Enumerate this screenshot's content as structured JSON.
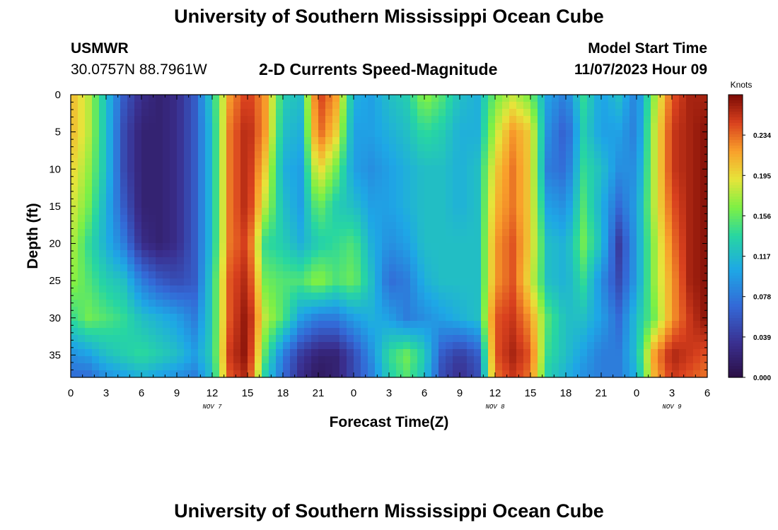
{
  "header": {
    "title": "University of Southern Mississippi Ocean Cube",
    "station": "USMWR",
    "coords": "30.0757N  88.7961W",
    "subtitle": "2-D Currents Speed-Magnitude",
    "model_label": "Model Start Time",
    "model_time": "11/07/2023 Hour 09"
  },
  "footer": {
    "title": "University of Southern Mississippi Ocean Cube"
  },
  "chart_data": {
    "type": "heatmap",
    "title": "2-D Currents Speed-Magnitude",
    "xlabel": "Forecast Time(Z)",
    "ylabel": "Depth (ft)",
    "x_tick_labels": [
      "0",
      "3",
      "6",
      "9",
      "12",
      "15",
      "18",
      "21",
      "0",
      "3",
      "6",
      "9",
      "12",
      "15",
      "18",
      "21",
      "0",
      "3",
      "6"
    ],
    "day_labels": [
      {
        "label": "NOV 7",
        "hour": 12
      },
      {
        "label": "NOV 8",
        "hour": 36
      },
      {
        "label": "NOV 9",
        "hour": 51
      }
    ],
    "xlim_hours": [
      0,
      54
    ],
    "ylim_depth_ft": [
      0,
      38
    ],
    "y_ticks": [
      0,
      5,
      10,
      15,
      20,
      25,
      30,
      35
    ],
    "y_tick_labels": [
      "0",
      "5",
      "10",
      "15",
      "20",
      "25",
      "30",
      "35"
    ],
    "colorbar": {
      "unit": "Knots",
      "range": [
        0,
        0.273
      ],
      "ticks": [
        "0.000",
        "0.039",
        "0.078",
        "0.117",
        "0.156",
        "0.195",
        "0.234"
      ],
      "tick_values": [
        0.0,
        0.039,
        0.078,
        0.117,
        0.156,
        0.195,
        0.234
      ]
    },
    "depths_ft": [
      0,
      5,
      10,
      15,
      20,
      25,
      30,
      35,
      38
    ],
    "hours": [
      0,
      1.5,
      3,
      4.5,
      6,
      7.5,
      9,
      10.5,
      12,
      13.5,
      15,
      16.5,
      18,
      19.5,
      21,
      22.5,
      24,
      25.5,
      27,
      28.5,
      30,
      31.5,
      33,
      34.5,
      36,
      37.5,
      39,
      40.5,
      42,
      43.5,
      45,
      46.5,
      48,
      49.5,
      51,
      52.5,
      54
    ],
    "speed_knots": [
      [
        0.21,
        0.18,
        0.12,
        0.06,
        0.03,
        0.02,
        0.03,
        0.06,
        0.13,
        0.22,
        0.25,
        0.22,
        0.13,
        0.12,
        0.25,
        0.22,
        0.11,
        0.1,
        0.12,
        0.13,
        0.17,
        0.15,
        0.12,
        0.11,
        0.16,
        0.18,
        0.16,
        0.1,
        0.08,
        0.14,
        0.1,
        0.12,
        0.08,
        0.17,
        0.24,
        0.26,
        0.26
      ],
      [
        0.21,
        0.18,
        0.12,
        0.05,
        0.02,
        0.02,
        0.03,
        0.06,
        0.12,
        0.23,
        0.26,
        0.22,
        0.12,
        0.11,
        0.24,
        0.2,
        0.1,
        0.1,
        0.11,
        0.12,
        0.14,
        0.13,
        0.11,
        0.11,
        0.18,
        0.22,
        0.2,
        0.09,
        0.06,
        0.13,
        0.1,
        0.1,
        0.08,
        0.18,
        0.25,
        0.26,
        0.27
      ],
      [
        0.2,
        0.17,
        0.12,
        0.05,
        0.02,
        0.02,
        0.03,
        0.06,
        0.12,
        0.23,
        0.26,
        0.2,
        0.11,
        0.1,
        0.2,
        0.16,
        0.1,
        0.09,
        0.1,
        0.11,
        0.12,
        0.12,
        0.11,
        0.12,
        0.2,
        0.23,
        0.2,
        0.08,
        0.07,
        0.14,
        0.12,
        0.09,
        0.09,
        0.18,
        0.25,
        0.26,
        0.27
      ],
      [
        0.19,
        0.16,
        0.11,
        0.06,
        0.02,
        0.02,
        0.03,
        0.06,
        0.12,
        0.23,
        0.26,
        0.18,
        0.12,
        0.1,
        0.16,
        0.13,
        0.12,
        0.1,
        0.1,
        0.11,
        0.12,
        0.12,
        0.11,
        0.12,
        0.21,
        0.23,
        0.2,
        0.1,
        0.09,
        0.15,
        0.11,
        0.07,
        0.1,
        0.18,
        0.24,
        0.26,
        0.27
      ],
      [
        0.18,
        0.14,
        0.11,
        0.08,
        0.03,
        0.02,
        0.03,
        0.06,
        0.12,
        0.23,
        0.25,
        0.14,
        0.13,
        0.11,
        0.13,
        0.14,
        0.15,
        0.11,
        0.09,
        0.1,
        0.12,
        0.12,
        0.12,
        0.12,
        0.22,
        0.24,
        0.2,
        0.12,
        0.11,
        0.16,
        0.12,
        0.04,
        0.1,
        0.17,
        0.23,
        0.26,
        0.27
      ],
      [
        0.17,
        0.15,
        0.13,
        0.12,
        0.08,
        0.06,
        0.05,
        0.06,
        0.13,
        0.24,
        0.26,
        0.16,
        0.15,
        0.15,
        0.17,
        0.15,
        0.16,
        0.12,
        0.07,
        0.08,
        0.11,
        0.12,
        0.12,
        0.12,
        0.22,
        0.24,
        0.19,
        0.12,
        0.11,
        0.14,
        0.09,
        0.05,
        0.1,
        0.17,
        0.22,
        0.26,
        0.27
      ],
      [
        0.14,
        0.16,
        0.15,
        0.14,
        0.12,
        0.11,
        0.1,
        0.08,
        0.13,
        0.24,
        0.27,
        0.18,
        0.15,
        0.1,
        0.08,
        0.08,
        0.1,
        0.11,
        0.1,
        0.08,
        0.09,
        0.1,
        0.11,
        0.12,
        0.24,
        0.25,
        0.22,
        0.15,
        0.12,
        0.12,
        0.1,
        0.07,
        0.12,
        0.16,
        0.22,
        0.25,
        0.27
      ],
      [
        0.09,
        0.1,
        0.12,
        0.13,
        0.14,
        0.13,
        0.12,
        0.1,
        0.13,
        0.25,
        0.27,
        0.15,
        0.08,
        0.04,
        0.02,
        0.02,
        0.05,
        0.09,
        0.14,
        0.16,
        0.13,
        0.06,
        0.04,
        0.06,
        0.24,
        0.26,
        0.24,
        0.14,
        0.12,
        0.1,
        0.08,
        0.08,
        0.12,
        0.22,
        0.26,
        0.25,
        0.24
      ],
      [
        0.07,
        0.07,
        0.09,
        0.1,
        0.11,
        0.1,
        0.09,
        0.08,
        0.12,
        0.24,
        0.26,
        0.13,
        0.07,
        0.03,
        0.01,
        0.02,
        0.05,
        0.08,
        0.13,
        0.15,
        0.12,
        0.05,
        0.03,
        0.05,
        0.23,
        0.25,
        0.23,
        0.13,
        0.11,
        0.09,
        0.08,
        0.08,
        0.11,
        0.21,
        0.25,
        0.24,
        0.23
      ]
    ]
  }
}
